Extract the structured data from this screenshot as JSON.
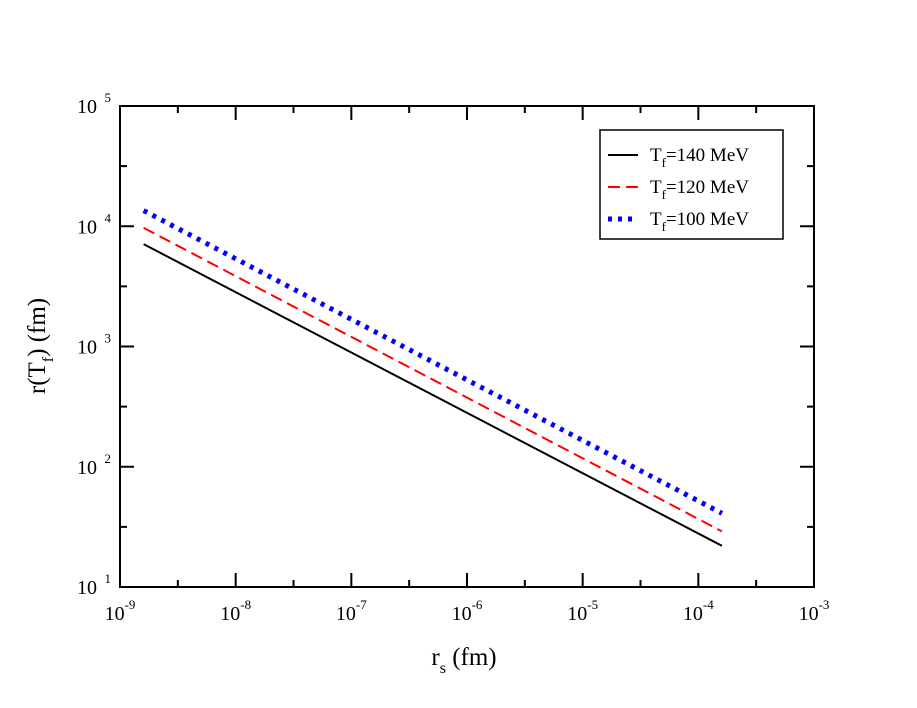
{
  "chart_data": {
    "type": "line",
    "title": "",
    "xlabel": {
      "main": "r",
      "sub": "s",
      "tail": " (fm)"
    },
    "ylabel": {
      "main": "r(T",
      "sub": "f",
      "tail": ") (fm)"
    },
    "x_scale": "log",
    "y_scale": "log",
    "xlim": [
      1e-09,
      0.001
    ],
    "ylim": [
      10,
      100000
    ],
    "grid": false,
    "legend_position": "top-right",
    "x_ticks": [
      {
        "base": "10",
        "exp": "-9",
        "value": 1e-09
      },
      {
        "base": "10",
        "exp": "-8",
        "value": 1e-08
      },
      {
        "base": "10",
        "exp": "-7",
        "value": 1e-07
      },
      {
        "base": "10",
        "exp": "-6",
        "value": 1e-06
      },
      {
        "base": "10",
        "exp": "-5",
        "value": 1e-05
      },
      {
        "base": "10",
        "exp": "-4",
        "value": 0.0001
      },
      {
        "base": "10",
        "exp": "-3",
        "value": 0.001
      }
    ],
    "y_ticks": [
      {
        "base": "10",
        "exp": "1",
        "value": 10
      },
      {
        "base": "10",
        "exp": "2",
        "value": 100
      },
      {
        "base": "10",
        "exp": "3",
        "value": 1000
      },
      {
        "base": "10",
        "exp": "4",
        "value": 10000
      },
      {
        "base": "10",
        "exp": "5",
        "value": 100000
      }
    ],
    "series": [
      {
        "name": {
          "main": "T",
          "sub": "f",
          "tail": "=140 MeV"
        },
        "color": "#000000",
        "style": "solid",
        "x": [
          1.6e-09,
          0.00016
        ],
        "y": [
          7100,
          22
        ]
      },
      {
        "name": {
          "main": "T",
          "sub": "f",
          "tail": "=120 MeV"
        },
        "color": "#ff0000",
        "style": "dashed",
        "x": [
          1.6e-09,
          0.00016
        ],
        "y": [
          9700,
          29
        ]
      },
      {
        "name": {
          "main": "T",
          "sub": "f",
          "tail": "=100 MeV"
        },
        "color": "#0000ff",
        "style": "dotted",
        "x": [
          1.6e-09,
          0.00016
        ],
        "y": [
          13500,
          41
        ]
      }
    ]
  }
}
